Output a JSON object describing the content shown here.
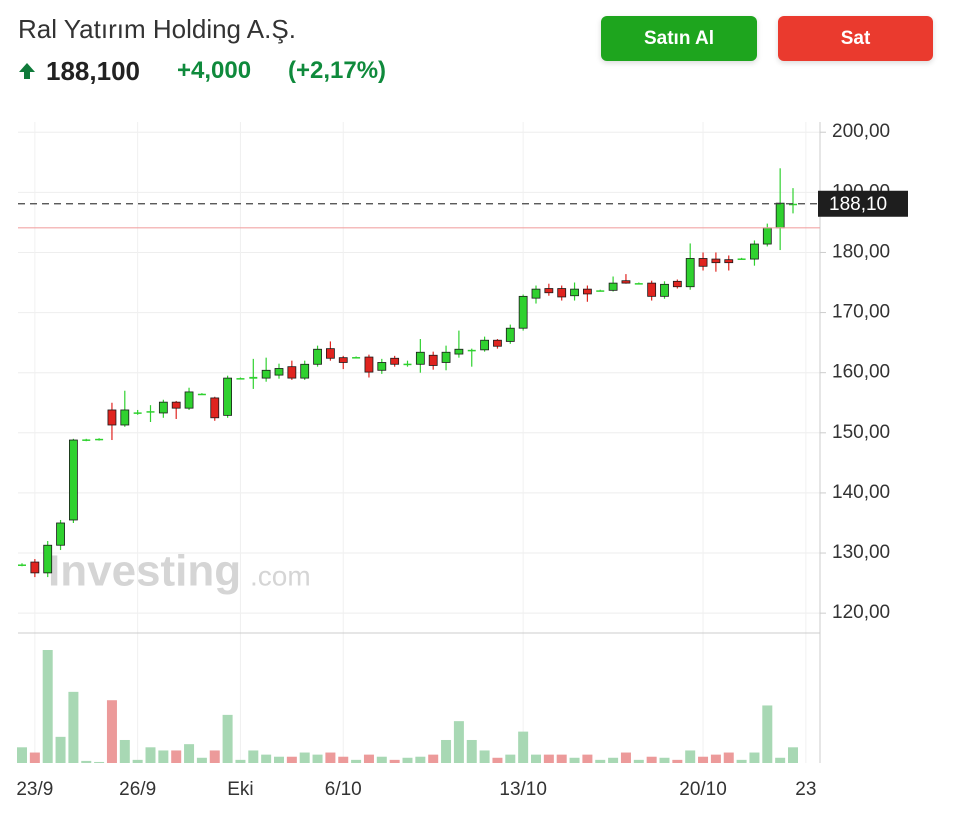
{
  "header": {
    "title": "Ral Yatırım Holding A.Ş.",
    "price": "188,100",
    "change": "+4,000",
    "change_pct": "(+2,17%)"
  },
  "buttons": {
    "buy": "Satın Al",
    "sell": "Sat"
  },
  "watermark": {
    "brand": "Investing",
    "suffix": ".com"
  },
  "chart_data": {
    "type": "candlestick",
    "categories": [
      null,
      "23/9",
      null,
      null,
      null,
      null,
      null,
      null,
      null,
      "26/9",
      null,
      null,
      null,
      null,
      null,
      null,
      null,
      "Eki",
      null,
      null,
      null,
      null,
      null,
      null,
      null,
      "6/10",
      null,
      null,
      null,
      null,
      null,
      null,
      null,
      null,
      null,
      null,
      null,
      null,
      null,
      "13/10",
      null,
      null,
      null,
      null,
      null,
      null,
      null,
      null,
      null,
      null,
      null,
      null,
      null,
      "20/10",
      null,
      null,
      null,
      null,
      null,
      null,
      null,
      "23"
    ],
    "open": [
      128,
      128.5,
      126.7,
      131.3,
      135.5,
      148.8,
      148.9,
      153.8,
      151.3,
      153.3,
      153.5,
      153.3,
      155.1,
      154.1,
      156.4,
      155.8,
      152.9,
      159,
      159,
      159.1,
      159.6,
      161,
      159.1,
      161.4,
      164,
      162.5,
      162.5,
      162.6,
      160.4,
      162.4,
      161.4,
      161.4,
      162.9,
      161.7,
      163.1,
      163.7,
      163.8,
      165.4,
      165.2,
      167.4,
      172.4,
      174,
      174,
      172.8,
      173.9,
      173.6,
      173.7,
      175.3,
      174.8,
      174.9,
      172.7,
      175.2,
      174.3,
      179,
      178.9,
      178.8,
      178.9,
      178.9,
      181.4,
      184.1,
      188,
      null
    ],
    "high": [
      128.3,
      129,
      132,
      135.5,
      149,
      149,
      149.1,
      155,
      157,
      153.8,
      154.6,
      155.5,
      155.3,
      157.5,
      156.6,
      156,
      159.5,
      159.2,
      162.3,
      162.5,
      161.5,
      162,
      162,
      164.5,
      165.2,
      162.8,
      162.7,
      163,
      162.3,
      162.8,
      162,
      165.6,
      163.5,
      164.5,
      167,
      164,
      166,
      165.6,
      168,
      173,
      174.5,
      174.8,
      174.5,
      175,
      174.5,
      173.8,
      176,
      176.4,
      175,
      175.3,
      175.2,
      175.5,
      181.5,
      180,
      180,
      179.5,
      179.1,
      182,
      184.8,
      194,
      190.7,
      null
    ],
    "low": [
      127.8,
      126,
      126,
      130.5,
      135,
      148.6,
      148.7,
      148.8,
      151,
      153,
      151.8,
      152.5,
      152.3,
      153.8,
      156.3,
      152,
      152.5,
      158.9,
      157.3,
      158.5,
      159,
      158.8,
      158.8,
      161,
      162,
      160.6,
      162.4,
      159.2,
      159.8,
      161,
      161,
      160,
      160.5,
      160.4,
      162.5,
      161,
      163.5,
      164,
      164.8,
      167,
      171.5,
      172.8,
      172,
      172,
      171.8,
      173.5,
      173.5,
      174.8,
      174.7,
      172,
      172.3,
      174,
      173.8,
      177,
      176.8,
      177,
      178.8,
      177.8,
      181,
      180.4,
      186.5,
      null
    ],
    "close": [
      128.1,
      126.7,
      131.3,
      135,
      148.8,
      148.9,
      149,
      151.3,
      153.8,
      153.4,
      153.6,
      155.1,
      154.1,
      156.8,
      156.5,
      152.5,
      159.1,
      159.1,
      159.3,
      160.4,
      160.7,
      159.1,
      161.4,
      163.9,
      162.4,
      161.7,
      162.6,
      160.1,
      161.7,
      161.4,
      161.5,
      163.4,
      161.2,
      163.4,
      163.9,
      163.8,
      165.4,
      164.4,
      167.4,
      172.7,
      173.9,
      173.3,
      172.6,
      173.9,
      173.1,
      173.7,
      174.9,
      174.9,
      174.9,
      172.7,
      174.7,
      174.3,
      179,
      177.7,
      178.3,
      178.3,
      179,
      181.4,
      184.1,
      188.2,
      188.1,
      null
    ],
    "volume": [
      15,
      10,
      108,
      25,
      68,
      2,
      1,
      60,
      22,
      3,
      15,
      12,
      12,
      18,
      5,
      12,
      46,
      3,
      12,
      8,
      6,
      6,
      10,
      8,
      10,
      6,
      3,
      8,
      6,
      3,
      5,
      6,
      8,
      22,
      40,
      22,
      12,
      5,
      8,
      30,
      8,
      8,
      8,
      5,
      8,
      3,
      5,
      10,
      3,
      6,
      5,
      3,
      12,
      6,
      8,
      10,
      3,
      10,
      55,
      5,
      15,
      null
    ],
    "up_color": "#2fd12f",
    "down_color": "#e0241f",
    "up_volume_color": "#a8d8b4",
    "down_volume_color": "#ec9a9a",
    "ylim": [
      116.7,
      201.7
    ],
    "yticks": [
      {
        "value": 120,
        "label": "120,00"
      },
      {
        "value": 130,
        "label": "130,00"
      },
      {
        "value": 140,
        "label": "140,00"
      },
      {
        "value": 150,
        "label": "150,00"
      },
      {
        "value": 160,
        "label": "160,00"
      },
      {
        "value": 170,
        "label": "170,00"
      },
      {
        "value": 180,
        "label": "180,00"
      },
      {
        "value": 190,
        "label": "190,00"
      },
      {
        "value": 200,
        "label": "200,00"
      }
    ],
    "last_price": {
      "value": 188.1,
      "label": "188,10"
    },
    "prev_close": 184.1,
    "grid": true
  }
}
